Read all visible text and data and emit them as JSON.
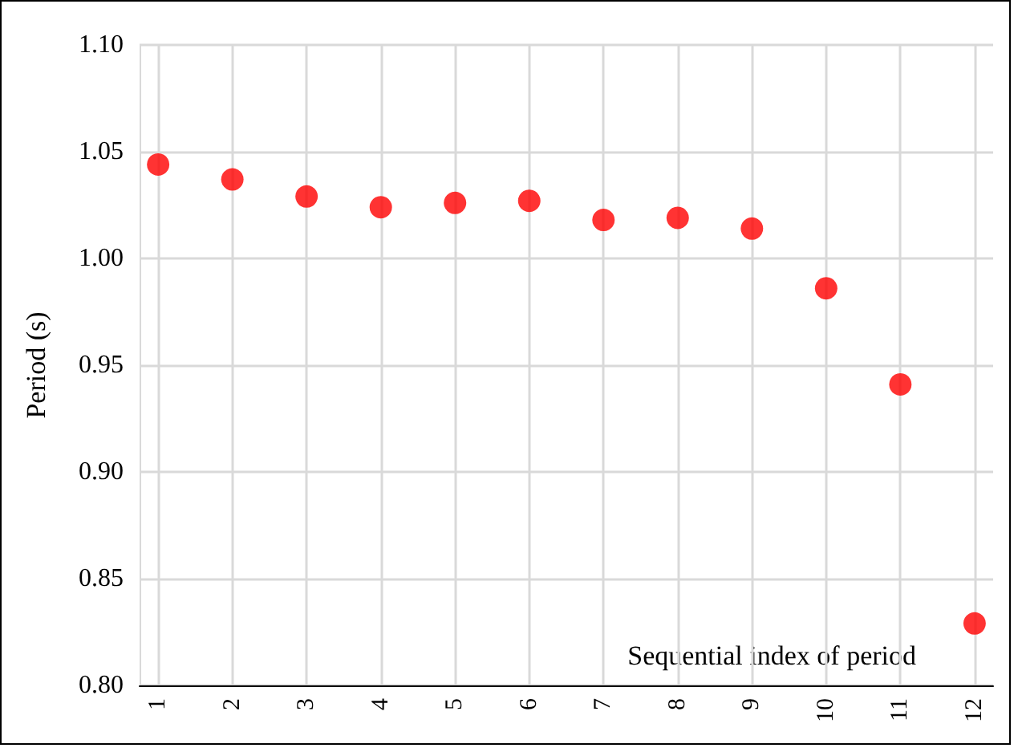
{
  "chart_data": {
    "type": "scatter",
    "xlabel": "Sequential index of period",
    "ylabel": "Period (s)",
    "x": [
      1,
      2,
      3,
      4,
      5,
      6,
      7,
      8,
      9,
      10,
      11,
      12
    ],
    "series": [
      {
        "color": "#ff0000",
        "values": [
          1.044,
          1.037,
          1.029,
          1.024,
          1.026,
          1.027,
          1.018,
          1.019,
          1.014,
          0.986,
          0.941,
          0.829
        ]
      }
    ],
    "xlim": [
      0.75,
      12.25
    ],
    "xticks": [
      1,
      2,
      3,
      4,
      5,
      6,
      7,
      8,
      9,
      10,
      11,
      12
    ],
    "ylim": [
      0.8,
      1.1
    ],
    "yticks": [
      {
        "value": 0.8,
        "label": "0.80"
      },
      {
        "value": 0.85,
        "label": "0.85"
      },
      {
        "value": 0.9,
        "label": "0.90"
      },
      {
        "value": 0.95,
        "label": "0.95"
      },
      {
        "value": 1,
        "label": "1.00"
      },
      {
        "value": 1.05,
        "label": "1.05"
      },
      {
        "value": 1.1,
        "label": "1.10"
      }
    ],
    "grid": true,
    "marker": "circle"
  }
}
